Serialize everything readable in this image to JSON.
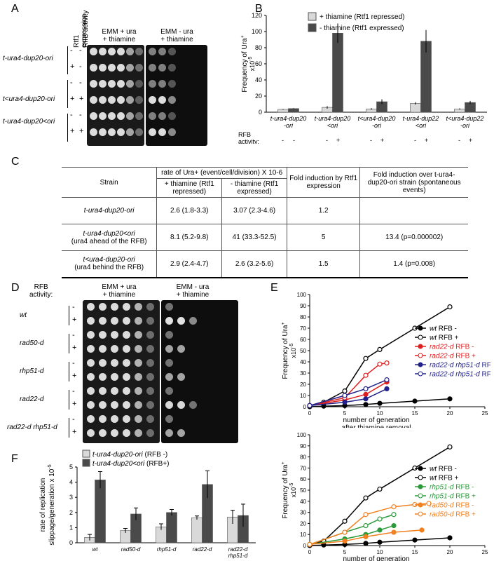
{
  "panels": {
    "A": {
      "label": "A",
      "col_headers": [
        "Rtf1 expression",
        "RFB activity"
      ],
      "plate1_title": [
        "EMM + ura",
        "+ thiamine"
      ],
      "plate2_title": [
        "EMM - ura",
        "+ thiamine"
      ],
      "strains": [
        "t-ura4-dup20-ori",
        "t<ura4-dup20-ori",
        "t-ura4-dup20<ori"
      ],
      "row_signs": [
        [
          "-",
          "-"
        ],
        [
          "+",
          "-"
        ],
        [
          "-",
          "-"
        ],
        [
          "+",
          "+"
        ],
        [
          "-",
          "-"
        ],
        [
          "+",
          "+"
        ]
      ]
    },
    "B": {
      "label": "B",
      "legend": [
        "+ thiamine (Rtf1 repressed)",
        "- thiamine (Rtf1 expressed)"
      ],
      "ylabel": "Frequency of Ura+ x10-5",
      "rfb_label": [
        "RFB",
        "activity:"
      ],
      "groups": [
        {
          "strain": [
            "t-ura4-dup20",
            "-ori"
          ],
          "signs": [
            "-",
            "-"
          ],
          "desc": []
        },
        {
          "strain": [
            "t-ura4-dup20",
            "<ori"
          ],
          "signs": [
            "-",
            "+"
          ],
          "desc": [
            "ura4 ahead",
            "of the RFB"
          ]
        },
        {
          "strain": [
            "t<ura4-dup20",
            "-ori"
          ],
          "signs": [
            "-",
            "+"
          ],
          "desc": [
            "ura4 behind",
            "the RFB"
          ]
        },
        {
          "strain": [
            "t-ura4-dup22",
            "<ori"
          ],
          "signs": [
            "-",
            "+"
          ],
          "desc": [
            "ura4 ahead",
            "of the RFB"
          ]
        },
        {
          "strain": [
            "t<ura4-dup22",
            "-ori"
          ],
          "signs": [
            "-",
            "+"
          ],
          "desc": [
            "ura4 behind",
            "the RFB"
          ]
        }
      ]
    },
    "C": {
      "label": "C",
      "header": {
        "strain": "Strain",
        "rate": "rate of Ura+ (event/cell/division) X 10-6",
        "plus_thiamine": "+ thiamine (Rtf1 repressed)",
        "minus_thiamine": "- thiamine (Rtf1 expressed)",
        "fold": "Fold induction by Rtf1 expression",
        "fold_over": "Fold induction over t-ura4-dup20-ori strain (spontaneous events)"
      },
      "rows": [
        {
          "strain": "t-ura4-dup20-ori",
          "sub": "",
          "plus": "2.6 (1.8-3.3)",
          "minus": "3.07 (2.3-4.6)",
          "fold": "1.2",
          "fold_over": ""
        },
        {
          "strain": "t-ura4-dup20<ori",
          "sub": "(ura4 ahead of the RFB)",
          "plus": "8.1 (5.2-9.8)",
          "minus": "41 (33.3-52.5)",
          "fold": "5",
          "fold_over": "13.4 (p=0.000002)"
        },
        {
          "strain": "t<ura4-dup20-ori",
          "sub": "(ura4 behind the RFB)",
          "plus": "2.9 (2.4-4.7)",
          "minus": "2.6 (3.2-5.6)",
          "fold": "1.5",
          "fold_over": "1.4 (p=0.008)"
        }
      ]
    },
    "D": {
      "label": "D",
      "rfb_label": [
        "RFB",
        "activity:"
      ],
      "plate1_title": [
        "EMM + ura",
        "+ thiamine"
      ],
      "plate2_title": [
        "EMM - ura",
        "+ thiamine"
      ],
      "strains": [
        "wt",
        "rad50-d",
        "rhp51-d",
        "rad22-d",
        "rad22-d rhp51-d"
      ]
    },
    "E": {
      "label": "E",
      "xlabel": [
        "number of generation",
        "after thiamine removal"
      ],
      "ylabel": "Frequency of Ura+ x10-5"
    },
    "F": {
      "label": "F",
      "legend": [
        "t-ura4-dup20-ori (RFB -)",
        "t-ura4-dup20<ori (RFB+)"
      ],
      "ylabel": [
        "rate of replication",
        "slippage/generation x 10-5"
      ]
    }
  },
  "chart_data": [
    {
      "type": "bar",
      "panel": "B",
      "categories": [
        "t-ura4-dup20-ori",
        "t-ura4-dup20<ori",
        "t<ura4-dup20-ori",
        "t-ura4-dup22<ori",
        "t<ura4-dup22-ori"
      ],
      "series": [
        {
          "name": "+ thiamine (Rtf1 repressed)",
          "values": [
            3.5,
            6,
            4,
            11,
            4
          ],
          "errors": [
            0.5,
            1.5,
            1,
            1.5,
            0.8
          ],
          "color": "#d9d9d9"
        },
        {
          "name": "- thiamine (Rtf1 expressed)",
          "values": [
            4.5,
            98,
            13,
            88,
            12
          ],
          "errors": [
            0.5,
            12,
            3,
            14,
            2
          ],
          "color": "#4a4a4a"
        }
      ],
      "ylim": [
        0,
        120
      ],
      "yticks": [
        0,
        20,
        40,
        60,
        80,
        100,
        120
      ]
    },
    {
      "type": "line",
      "panel": "E-top",
      "xlim": [
        0,
        25
      ],
      "ylim": [
        0,
        100
      ],
      "xticks": [
        0,
        5,
        10,
        15,
        20,
        25
      ],
      "yticks": [
        0,
        10,
        20,
        30,
        40,
        50,
        60,
        70,
        80,
        90,
        100
      ],
      "series": [
        {
          "name": "wt RFB -",
          "color": "#000000",
          "filled": true,
          "x": [
            0,
            2,
            5,
            8,
            10,
            15,
            20
          ],
          "y": [
            0,
            0.5,
            1,
            2,
            3,
            5,
            7
          ]
        },
        {
          "name": "wt RFB +",
          "color": "#000000",
          "filled": false,
          "x": [
            0,
            2,
            5,
            8,
            10,
            15,
            20
          ],
          "y": [
            1,
            4,
            14,
            43,
            51,
            70,
            89
          ]
        },
        {
          "name": "rad22-d RFB -",
          "color": "#e02020",
          "filled": true,
          "x": [
            0,
            5,
            8,
            11
          ],
          "y": [
            1,
            6,
            11,
            22
          ]
        },
        {
          "name": "rad22-d RFB +",
          "color": "#e02020",
          "filled": false,
          "x": [
            0,
            5,
            8,
            10,
            11
          ],
          "y": [
            1,
            8,
            28,
            38,
            39
          ]
        },
        {
          "name": "rad22-d rhp51-d RFB -",
          "color": "#22228a",
          "filled": true,
          "x": [
            0,
            5,
            8,
            11
          ],
          "y": [
            1,
            4,
            7,
            16
          ]
        },
        {
          "name": "rad22-d rhp51-d RFB +",
          "color": "#22228a",
          "filled": false,
          "x": [
            0,
            5,
            8,
            11
          ],
          "y": [
            1,
            10,
            16,
            24
          ]
        }
      ]
    },
    {
      "type": "line",
      "panel": "E-bottom",
      "xlim": [
        0,
        25
      ],
      "ylim": [
        0,
        100
      ],
      "xticks": [
        0,
        5,
        10,
        15,
        20,
        25
      ],
      "yticks": [
        0,
        10,
        20,
        30,
        40,
        50,
        60,
        70,
        80,
        90,
        100
      ],
      "series": [
        {
          "name": "wt RFB -",
          "color": "#000000",
          "filled": true,
          "x": [
            0,
            2,
            5,
            8,
            10,
            15,
            20
          ],
          "y": [
            0,
            0.5,
            1,
            2,
            3,
            5,
            7
          ]
        },
        {
          "name": "wt RFB +",
          "color": "#000000",
          "filled": false,
          "x": [
            0,
            2,
            5,
            8,
            10,
            15,
            20
          ],
          "y": [
            1,
            4,
            22,
            43,
            51,
            70,
            89
          ]
        },
        {
          "name": "rhp51-d RFB -",
          "color": "#2a9a3a",
          "filled": true,
          "x": [
            0,
            5,
            8,
            10,
            12
          ],
          "y": [
            1,
            6,
            10,
            14,
            18
          ]
        },
        {
          "name": "rhp51-d RFB +",
          "color": "#2a9a3a",
          "filled": false,
          "x": [
            0,
            5,
            8,
            10,
            12
          ],
          "y": [
            1,
            12,
            18,
            24,
            28
          ]
        },
        {
          "name": "rad50-d RFB -",
          "color": "#f08020",
          "filled": true,
          "x": [
            0,
            5,
            8,
            12,
            16
          ],
          "y": [
            1,
            4,
            8,
            12,
            14
          ]
        },
        {
          "name": "rad50-d RFB +",
          "color": "#f08020",
          "filled": false,
          "x": [
            0,
            5,
            8,
            12,
            15,
            17
          ],
          "y": [
            1,
            12,
            28,
            35,
            37,
            38
          ]
        }
      ]
    },
    {
      "type": "bar",
      "panel": "F",
      "categories": [
        "wt",
        "rad50-d",
        "rhp51-d",
        "rad22-d",
        "rad22-d rhp51-d"
      ],
      "series": [
        {
          "name": "t-ura4-dup20-ori (RFB -)",
          "values": [
            0.35,
            0.8,
            1.05,
            1.65,
            1.7
          ],
          "errors": [
            0.2,
            0.15,
            0.2,
            0.12,
            0.45
          ],
          "color": "#d9d9d9"
        },
        {
          "name": "t-ura4-dup20<ori (RFB+)",
          "values": [
            4.15,
            1.9,
            2.0,
            3.85,
            1.8
          ],
          "errors": [
            0.55,
            0.4,
            0.2,
            0.9,
            0.75
          ],
          "color": "#4a4a4a"
        }
      ],
      "ylim": [
        0,
        5
      ],
      "yticks": [
        0,
        1,
        2,
        3,
        4,
        5
      ]
    }
  ]
}
